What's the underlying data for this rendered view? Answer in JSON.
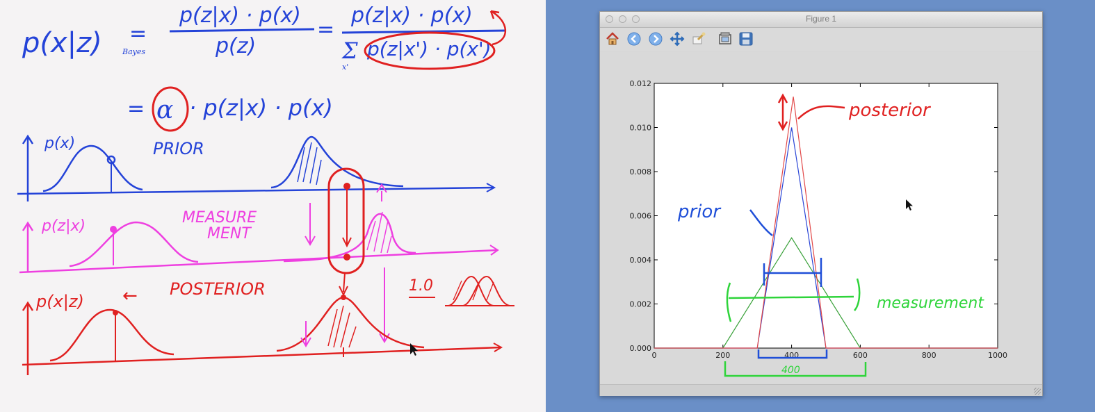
{
  "whiteboard": {
    "bayes_lhs": "p(x|z)",
    "bayes_eq": "=",
    "bayes_sub": "Bayes",
    "frac1_num": "p(z|x) · p(x)",
    "frac1_den": "p(z)",
    "eq2": "=",
    "frac2_num": "p(z|x) · p(x)",
    "frac2_sum": "Σ",
    "frac2_sum_sub": "x'",
    "frac2_den": "p(z|x') · p(x')",
    "line2_eq": "=",
    "alpha": "α",
    "line2_rest": "· p(z|x) · p(x)",
    "prior_axis_label": "p(x)",
    "prior_word": "PRIOR",
    "meas_axis_label": "p(z|x)",
    "meas_word_1": "MEASURE",
    "meas_word_2": "MENT",
    "post_axis_label": "p(x|z)",
    "post_arrow": "←",
    "post_word": "POSTERIOR",
    "norm_label": "1.0"
  },
  "figure": {
    "window_title": "Figure 1",
    "toolbar": [
      {
        "name": "home-icon",
        "color": "#c0392b"
      },
      {
        "name": "back-icon",
        "color": "#5b8fd6"
      },
      {
        "name": "forward-icon",
        "color": "#5b8fd6"
      },
      {
        "name": "pan-icon",
        "color": "#2d6bb8"
      },
      {
        "name": "zoom-icon",
        "color": "#caa24a"
      },
      {
        "name": "subplots-icon",
        "color": "#555555"
      },
      {
        "name": "save-icon",
        "color": "#2f5f9e"
      }
    ],
    "annotations": {
      "posterior": "posterior",
      "prior": "prior",
      "measurement": "measurement",
      "width": "400"
    },
    "colors": {
      "prior": "#2a45d6",
      "measurement": "#3aa13a",
      "posterior": "#e24848",
      "annotation_red": "#e02020",
      "annotation_blue": "#1f4fd8",
      "annotation_green": "#2ed43a"
    }
  },
  "chart_data": {
    "type": "line",
    "xlim": [
      0,
      1000
    ],
    "ylim": [
      0,
      0.012
    ],
    "x_ticks": [
      "0",
      "200",
      "400",
      "600",
      "800",
      "1000"
    ],
    "y_ticks": [
      "0.000",
      "0.002",
      "0.004",
      "0.006",
      "0.008",
      "0.010",
      "0.012"
    ],
    "grid": false,
    "series": [
      {
        "color": "#3aa13a",
        "x": [
          200,
          400,
          600
        ],
        "y": [
          0,
          0.005,
          0
        ]
      },
      {
        "color": "#2a45d6",
        "x": [
          300,
          400,
          500
        ],
        "y": [
          0,
          0.01,
          0
        ]
      },
      {
        "color": "#e24848",
        "x": [
          300,
          405,
          500
        ],
        "y": [
          0,
          0.0114,
          0
        ]
      }
    ]
  }
}
